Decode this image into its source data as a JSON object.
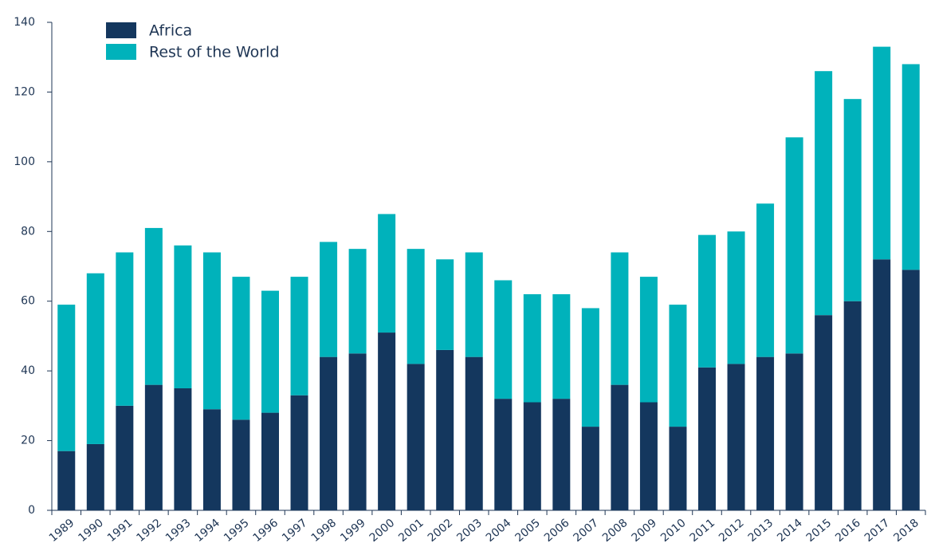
{
  "chart_data": {
    "type": "stacked_bar",
    "categories": [
      "1989",
      "1990",
      "1991",
      "1992",
      "1993",
      "1994",
      "1995",
      "1996",
      "1997",
      "1998",
      "1999",
      "2000",
      "2001",
      "2002",
      "2003",
      "2004",
      "2005",
      "2006",
      "2007",
      "2008",
      "2009",
      "2010",
      "2011",
      "2012",
      "2013",
      "2014",
      "2015",
      "2016",
      "2017",
      "2018"
    ],
    "series": [
      {
        "name": "Africa",
        "color": "#14375e",
        "values": [
          17,
          19,
          30,
          36,
          35,
          29,
          26,
          28,
          33,
          44,
          45,
          51,
          42,
          46,
          44,
          32,
          31,
          32,
          24,
          36,
          31,
          24,
          41,
          42,
          44,
          45,
          56,
          60,
          72,
          69
        ]
      },
      {
        "name": "Rest of the World",
        "color": "#00b2bb",
        "values": [
          42,
          49,
          44,
          45,
          41,
          45,
          41,
          35,
          34,
          33,
          30,
          34,
          33,
          26,
          30,
          34,
          31,
          30,
          34,
          38,
          36,
          35,
          38,
          38,
          44,
          62,
          70,
          58,
          61,
          59
        ]
      }
    ],
    "ylim": [
      0,
      140
    ],
    "yticks": [
      0,
      20,
      40,
      60,
      80,
      100,
      120,
      140
    ],
    "legend": "upper left"
  }
}
